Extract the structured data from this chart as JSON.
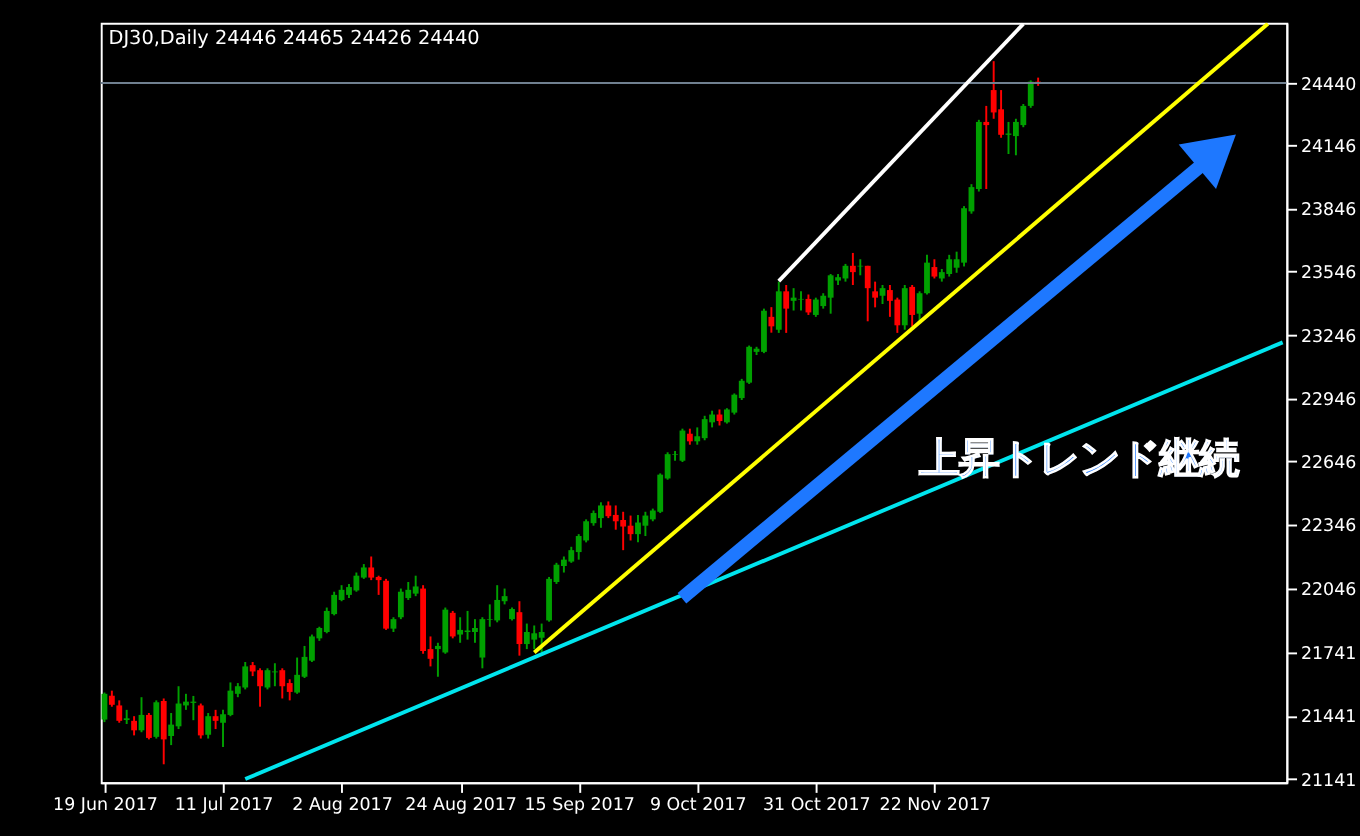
{
  "chart_data": {
    "type": "candlestick",
    "title": "DJ30,Daily 24446 24465 24426 24440",
    "categories": [
      "19 Jun 2017",
      null,
      null,
      null,
      null,
      null,
      null,
      null,
      null,
      null,
      null,
      null,
      null,
      null,
      null,
      null,
      "11 Jul 2017",
      null,
      null,
      null,
      null,
      null,
      null,
      null,
      null,
      null,
      null,
      null,
      null,
      null,
      null,
      null,
      "2 Aug 2017",
      null,
      null,
      null,
      null,
      null,
      null,
      null,
      null,
      null,
      null,
      null,
      null,
      null,
      null,
      null,
      "24 Aug 2017",
      null,
      null,
      null,
      null,
      null,
      null,
      null,
      null,
      null,
      null,
      null,
      null,
      null,
      null,
      null,
      "15 Sep 2017",
      null,
      null,
      null,
      null,
      null,
      null,
      null,
      null,
      null,
      null,
      null,
      null,
      null,
      null,
      null,
      "9 Oct 2017",
      null,
      null,
      null,
      null,
      null,
      null,
      null,
      null,
      null,
      null,
      null,
      null,
      null,
      null,
      null,
      "31 Oct 2017",
      null,
      null,
      null,
      null,
      null,
      null,
      null,
      null,
      null,
      null,
      null,
      null,
      null,
      null,
      null,
      "22 Nov 2017",
      null,
      null,
      null,
      null,
      null,
      null,
      null,
      null,
      null,
      null,
      null,
      null,
      null,
      null,
      null,
      null,
      null,
      null,
      null,
      null,
      null,
      null,
      null,
      null,
      null,
      null,
      null,
      null,
      null,
      null,
      null,
      null,
      null,
      null,
      null,
      null,
      null,
      null,
      null,
      null,
      null,
      null,
      null,
      null,
      null,
      null,
      null
    ],
    "ohlc": [
      [
        21422,
        21550,
        21410,
        21544
      ],
      [
        21535,
        21559,
        21483,
        21492
      ],
      [
        21489,
        21513,
        21407,
        21416
      ],
      [
        21420,
        21468,
        21401,
        21428
      ],
      [
        21416,
        21438,
        21347,
        21371
      ],
      [
        21371,
        21528,
        21362,
        21444
      ],
      [
        21444,
        21453,
        21328,
        21335
      ],
      [
        21340,
        21513,
        21332,
        21504
      ],
      [
        21510,
        21522,
        21210,
        21328
      ],
      [
        21344,
        21453,
        21301,
        21398
      ],
      [
        21390,
        21580,
        21377,
        21498
      ],
      [
        21489,
        21544,
        21468,
        21507
      ],
      [
        21501,
        21534,
        21419,
        21507
      ],
      [
        21489,
        21498,
        21332,
        21347
      ],
      [
        21350,
        21453,
        21332,
        21438
      ],
      [
        21438,
        21468,
        21377,
        21416
      ],
      [
        21407,
        21468,
        21292,
        21447
      ],
      [
        21444,
        21598,
        21438,
        21559
      ],
      [
        21544,
        21595,
        21528,
        21580
      ],
      [
        21574,
        21695,
        21565,
        21674
      ],
      [
        21680,
        21695,
        21628,
        21650
      ],
      [
        21656,
        21665,
        21483,
        21580
      ],
      [
        21574,
        21665,
        21565,
        21656
      ],
      [
        21646,
        21689,
        21580,
        21650
      ],
      [
        21656,
        21665,
        21522,
        21580
      ],
      [
        21595,
        21613,
        21513,
        21553
      ],
      [
        21550,
        21716,
        21544,
        21634
      ],
      [
        21625,
        21771,
        21619,
        21719
      ],
      [
        21701,
        21825,
        21695,
        21816
      ],
      [
        21807,
        21862,
        21795,
        21856
      ],
      [
        21837,
        21953,
        21831,
        21937
      ],
      [
        21922,
        22028,
        21916,
        22013
      ],
      [
        21989,
        22059,
        21983,
        22037
      ],
      [
        22013,
        22065,
        21998,
        22050
      ],
      [
        22034,
        22119,
        22028,
        22104
      ],
      [
        22095,
        22159,
        22089,
        22143
      ],
      [
        22143,
        22195,
        22083,
        22095
      ],
      [
        22098,
        22104,
        22013,
        22083
      ],
      [
        22080,
        22089,
        21847,
        21853
      ],
      [
        21853,
        21907,
        21837,
        21898
      ],
      [
        21907,
        22043,
        21898,
        22028
      ],
      [
        21998,
        22074,
        21989,
        22037
      ],
      [
        22019,
        22104,
        22007,
        22053
      ],
      [
        22043,
        22059,
        21734,
        21747
      ],
      [
        21756,
        21816,
        21674,
        21710
      ],
      [
        21756,
        21786,
        21625,
        21771
      ],
      [
        21740,
        21953,
        21734,
        21943
      ],
      [
        21928,
        21937,
        21807,
        21816
      ],
      [
        21825,
        21907,
        21786,
        21847
      ],
      [
        21837,
        21937,
        21801,
        21844
      ],
      [
        21837,
        21898,
        21786,
        21856
      ],
      [
        21716,
        21907,
        21665,
        21898
      ],
      [
        21895,
        21968,
        21862,
        21898
      ],
      [
        21892,
        22059,
        21883,
        21989
      ],
      [
        21983,
        22043,
        21968,
        22007
      ],
      [
        21898,
        21953,
        21892,
        21946
      ],
      [
        21931,
        21983,
        21725,
        21780
      ],
      [
        21780,
        21877,
        21756,
        21837
      ],
      [
        21801,
        21868,
        21756,
        21831
      ],
      [
        21810,
        21877,
        21741,
        21837
      ],
      [
        21892,
        22098,
        21886,
        22089
      ],
      [
        22074,
        22165,
        22065,
        22156
      ],
      [
        22150,
        22195,
        22119,
        22180
      ],
      [
        22171,
        22241,
        22165,
        22225
      ],
      [
        22216,
        22301,
        22180,
        22292
      ],
      [
        22271,
        22371,
        22262,
        22362
      ],
      [
        22353,
        22413,
        22341,
        22401
      ],
      [
        22377,
        22452,
        22331,
        22437
      ],
      [
        22437,
        22456,
        22377,
        22386
      ],
      [
        22392,
        22437,
        22322,
        22362
      ],
      [
        22368,
        22407,
        22225,
        22337
      ],
      [
        22341,
        22389,
        22271,
        22301
      ],
      [
        22301,
        22392,
        22262,
        22356
      ],
      [
        22341,
        22407,
        22292,
        22389
      ],
      [
        22371,
        22422,
        22362,
        22413
      ],
      [
        22407,
        22589,
        22401,
        22583
      ],
      [
        22565,
        22689,
        22559,
        22680
      ],
      [
        22677,
        22695,
        22649,
        22680
      ],
      [
        22649,
        22801,
        22643,
        22792
      ],
      [
        22777,
        22801,
        22725,
        22741
      ],
      [
        22741,
        22807,
        22725,
        22765
      ],
      [
        22756,
        22862,
        22746,
        22846
      ],
      [
        22831,
        22886,
        22807,
        22868
      ],
      [
        22868,
        22892,
        22816,
        22837
      ],
      [
        22831,
        22898,
        22825,
        22892
      ],
      [
        22877,
        22968,
        22868,
        22962
      ],
      [
        22946,
        23037,
        22937,
        23028
      ],
      [
        23019,
        23195,
        23013,
        23189
      ],
      [
        23165,
        23189,
        23150,
        23180
      ],
      [
        23165,
        23370,
        23159,
        23360
      ],
      [
        23331,
        23377,
        23256,
        23286
      ],
      [
        23270,
        23498,
        23255,
        23452
      ],
      [
        23452,
        23482,
        23255,
        23370
      ],
      [
        23407,
        23467,
        23361,
        23422
      ],
      [
        23413,
        23452,
        23361,
        23416
      ],
      [
        23416,
        23437,
        23340,
        23352
      ],
      [
        23340,
        23422,
        23331,
        23413
      ],
      [
        23382,
        23443,
        23370,
        23431
      ],
      [
        23422,
        23534,
        23346,
        23528
      ],
      [
        23503,
        23534,
        23482,
        23519
      ],
      [
        23513,
        23582,
        23498,
        23573
      ],
      [
        23573,
        23634,
        23482,
        23543
      ],
      [
        23570,
        23604,
        23528,
        23573
      ],
      [
        23573,
        23573,
        23310,
        23467
      ],
      [
        23452,
        23498,
        23376,
        23422
      ],
      [
        23431,
        23482,
        23392,
        23467
      ],
      [
        23458,
        23482,
        23331,
        23407
      ],
      [
        23413,
        23422,
        23255,
        23291
      ],
      [
        23291,
        23482,
        23270,
        23467
      ],
      [
        23473,
        23482,
        23285,
        23340
      ],
      [
        23346,
        23452,
        23300,
        23443
      ],
      [
        23443,
        23625,
        23437,
        23588
      ],
      [
        23567,
        23604,
        23513,
        23522
      ],
      [
        23513,
        23558,
        23498,
        23543
      ],
      [
        23534,
        23625,
        23522,
        23604
      ],
      [
        23564,
        23640,
        23540,
        23604
      ],
      [
        23588,
        23856,
        23570,
        23846
      ],
      [
        23831,
        23960,
        23820,
        23946
      ],
      [
        23937,
        24265,
        23925,
        24255
      ],
      [
        24255,
        24331,
        23937,
        24240
      ],
      [
        24406,
        24543,
        24270,
        24300
      ],
      [
        24315,
        24406,
        24180,
        24194
      ],
      [
        24194,
        24255,
        24103,
        24200
      ],
      [
        24188,
        24270,
        24097,
        24255
      ],
      [
        24240,
        24340,
        24230,
        24331
      ],
      [
        24331,
        24452,
        24322,
        24446
      ],
      [
        24446,
        24465,
        24426,
        24440
      ],
      null,
      null,
      null,
      null,
      null,
      null,
      null,
      null,
      null,
      null,
      null,
      null,
      null,
      null,
      null,
      null,
      null,
      null,
      null,
      null,
      null,
      null,
      null,
      null,
      null,
      null,
      null,
      null,
      null,
      null,
      null,
      null,
      null
    ],
    "colors": [
      "#00a000",
      "#ff0000",
      "#ff0000",
      "#00a000",
      "#ff0000",
      "#00a000",
      "#ff0000",
      "#00a000",
      "#ff0000",
      "#00a000",
      "#00a000",
      "#00a000",
      "#00a000",
      "#ff0000",
      "#00a000",
      "#ff0000",
      "#00a000",
      "#00a000",
      "#00a000",
      "#00a000",
      "#ff0000",
      "#ff0000",
      "#00a000",
      "#00a000",
      "#ff0000",
      "#ff0000",
      "#00a000",
      "#00a000",
      "#00a000",
      "#00a000",
      "#00a000",
      "#00a000",
      "#00a000",
      "#00a000",
      "#00a000",
      "#00a000",
      "#ff0000",
      "#ff0000",
      "#ff0000",
      "#00a000",
      "#00a000",
      "#00a000",
      "#00a000",
      "#ff0000",
      "#ff0000",
      "#00a000",
      "#00a000",
      "#ff0000",
      "#00a000",
      "#00a000",
      "#00a000",
      "#00a000",
      "#00a000",
      "#00a000",
      "#00a000",
      "#00a000",
      "#ff0000",
      "#00a000",
      "#00a000",
      "#00a000",
      "#00a000",
      "#00a000",
      "#00a000",
      "#00a000",
      "#00a000",
      "#00a000",
      "#00a000",
      "#00a000",
      "#ff0000",
      "#ff0000",
      "#ff0000",
      "#ff0000",
      "#00a000",
      "#00a000",
      "#00a000",
      "#00a000",
      "#00a000",
      "#00a000",
      "#00a000",
      "#ff0000",
      "#00a000",
      "#00a000",
      "#00a000",
      "#ff0000",
      "#00a000",
      "#00a000",
      "#00a000",
      "#00a000",
      "#00a000",
      "#00a000",
      "#ff0000",
      "#00a000",
      "#ff0000",
      "#00a000",
      "#00a000",
      "#ff0000",
      "#00a000",
      "#00a000",
      "#00a000",
      "#00a000",
      "#00a000",
      "#ff0000",
      "#00a000",
      "#ff0000",
      "#ff0000",
      "#00a000",
      "#ff0000",
      "#ff0000",
      "#00a000",
      "#ff0000",
      "#00a000",
      "#00a000",
      "#ff0000",
      "#00a000",
      "#00a000",
      "#00a000",
      "#00a000",
      "#00a000",
      "#00a000",
      "#ff0000",
      "#ff0000",
      "#ff0000",
      "#00a000",
      "#00a000",
      "#00a000",
      "#00a000",
      "#ff0000",
      null,
      null,
      null,
      null,
      null,
      null,
      null,
      null,
      null,
      null,
      null,
      null,
      null,
      null,
      null,
      null,
      null,
      null,
      null,
      null,
      null,
      null,
      null,
      null,
      null,
      null,
      null,
      null,
      null,
      null,
      null,
      null,
      null
    ],
    "ylim": [
      21125,
      24725
    ],
    "yticks": [
      21141,
      21441,
      21741,
      22046,
      22346,
      22646,
      22946,
      23246,
      23546,
      23846,
      24146,
      24440
    ],
    "ref_lines": [
      {
        "axis": "y",
        "value": 24440,
        "color": "#708090"
      }
    ],
    "series": [
      {
        "type": "line",
        "color": "#ffffff",
        "values": [
          null,
          null,
          null,
          null,
          null,
          null,
          null,
          null,
          null,
          null,
          null,
          null,
          null,
          null,
          null,
          null,
          null,
          null,
          null,
          null,
          null,
          null,
          null,
          null,
          null,
          null,
          null,
          null,
          null,
          null,
          null,
          null,
          null,
          null,
          null,
          null,
          null,
          null,
          null,
          null,
          null,
          null,
          null,
          null,
          null,
          null,
          null,
          null,
          null,
          null,
          null,
          null,
          null,
          null,
          null,
          null,
          null,
          null,
          null,
          null,
          null,
          null,
          null,
          null,
          null,
          null,
          null,
          null,
          null,
          null,
          null,
          null,
          null,
          null,
          null,
          null,
          null,
          null,
          null,
          null,
          null,
          null,
          null,
          null,
          null,
          null,
          null,
          null,
          null,
          null,
          null,
          23500,
          null,
          null,
          null,
          null,
          null,
          null,
          null,
          null,
          null,
          null,
          null,
          null,
          null,
          null,
          null,
          null,
          null,
          null,
          null,
          null,
          null,
          null,
          null,
          null,
          null,
          null,
          null,
          null,
          null,
          null,
          null,
          null,
          24720,
          null,
          null,
          null,
          null,
          null,
          null,
          null,
          null,
          null,
          null,
          null,
          null,
          null,
          null,
          null,
          null,
          null,
          null,
          null,
          null,
          null,
          null,
          null,
          null,
          null,
          null,
          null,
          null,
          null,
          null,
          null,
          null,
          null,
          null,
          null
        ]
      },
      {
        "type": "line",
        "color": "#ffff00",
        "values": [
          null,
          null,
          null,
          null,
          null,
          null,
          null,
          null,
          null,
          null,
          null,
          null,
          null,
          null,
          null,
          null,
          null,
          null,
          null,
          null,
          null,
          null,
          null,
          null,
          null,
          null,
          null,
          null,
          null,
          null,
          null,
          null,
          null,
          null,
          null,
          null,
          null,
          null,
          null,
          null,
          null,
          null,
          null,
          null,
          null,
          null,
          null,
          null,
          null,
          null,
          null,
          null,
          null,
          null,
          null,
          null,
          null,
          null,
          21740,
          null,
          null,
          null,
          null,
          null,
          null,
          null,
          null,
          null,
          null,
          null,
          null,
          null,
          null,
          null,
          null,
          null,
          null,
          null,
          null,
          null,
          null,
          null,
          null,
          null,
          null,
          null,
          null,
          null,
          null,
          null,
          null,
          null,
          null,
          null,
          null,
          null,
          null,
          null,
          null,
          null,
          null,
          null,
          null,
          null,
          null,
          null,
          null,
          null,
          null,
          null,
          null,
          null,
          null,
          null,
          null,
          null,
          null,
          null,
          null,
          null,
          null,
          null,
          null,
          null,
          null,
          null,
          null,
          null,
          null,
          null,
          null,
          null,
          null,
          null,
          null,
          null,
          null,
          null,
          null,
          null,
          null,
          null,
          null,
          null,
          null,
          null,
          null,
          null,
          null,
          null,
          null,
          null,
          null,
          null,
          null,
          null,
          null,
          24720,
          null,
          null
        ]
      },
      {
        "type": "line",
        "color": "#00e5ee",
        "values": [
          null,
          null,
          null,
          null,
          null,
          null,
          null,
          null,
          null,
          null,
          null,
          null,
          null,
          null,
          null,
          null,
          null,
          null,
          null,
          21140,
          null,
          null,
          null,
          null,
          null,
          null,
          null,
          null,
          null,
          null,
          null,
          null,
          null,
          null,
          null,
          null,
          null,
          null,
          null,
          null,
          null,
          null,
          null,
          null,
          null,
          null,
          null,
          null,
          null,
          null,
          null,
          null,
          null,
          null,
          null,
          null,
          null,
          null,
          null,
          null,
          null,
          null,
          null,
          null,
          null,
          null,
          null,
          null,
          null,
          null,
          null,
          null,
          null,
          null,
          null,
          null,
          null,
          null,
          null,
          null,
          null,
          null,
          null,
          null,
          null,
          null,
          null,
          null,
          null,
          null,
          null,
          null,
          null,
          null,
          null,
          null,
          null,
          null,
          null,
          null,
          null,
          null,
          null,
          null,
          null,
          null,
          null,
          null,
          null,
          null,
          null,
          null,
          null,
          null,
          null,
          null,
          null,
          null,
          null,
          null,
          null,
          null,
          null,
          null,
          null,
          null,
          null,
          null,
          null,
          null,
          null,
          null,
          null,
          null,
          null,
          null,
          null,
          null,
          null,
          null,
          null,
          null,
          null,
          null,
          null,
          null,
          null,
          null,
          null,
          null,
          null,
          null,
          null,
          null,
          null,
          null,
          null,
          null,
          null,
          23210
        ]
      }
    ],
    "annotations": [
      "上昇トレンド継続"
    ]
  }
}
